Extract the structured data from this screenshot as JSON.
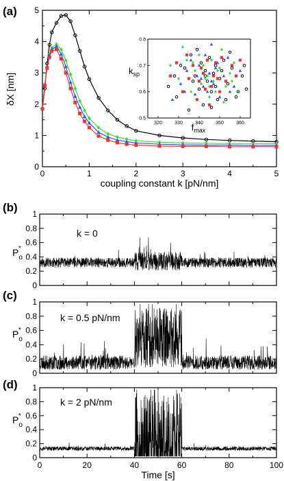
{
  "chart_data": [
    {
      "panel": "(a)",
      "type": "line",
      "xlabel": "coupling constant k [pN/nm]",
      "ylabel": "δX [nm]",
      "xlim": [
        0,
        5
      ],
      "ylim": [
        0,
        5
      ],
      "xticks": [
        "0",
        "1",
        "2",
        "3",
        "4",
        "5"
      ],
      "yticks": [
        "0",
        "1",
        "2",
        "3",
        "4",
        "5"
      ],
      "series": [
        {
          "color": "#000000",
          "marker": "circle",
          "x": [
            0,
            0.05,
            0.1,
            0.15,
            0.2,
            0.3,
            0.4,
            0.5,
            0.6,
            0.7,
            0.8,
            0.9,
            1.0,
            1.2,
            1.4,
            1.6,
            1.8,
            2.0,
            2.5,
            3.0,
            3.5,
            4.0,
            4.5,
            5.0
          ],
          "y": [
            1.85,
            2.5,
            3.3,
            3.9,
            4.3,
            4.6,
            4.82,
            4.85,
            4.65,
            4.2,
            3.7,
            3.2,
            2.8,
            2.2,
            1.8,
            1.5,
            1.3,
            1.15,
            1.0,
            0.92,
            0.87,
            0.84,
            0.82,
            0.8
          ]
        },
        {
          "color": "#33dd33",
          "marker": "diamond",
          "x": [
            0,
            0.05,
            0.1,
            0.15,
            0.2,
            0.3,
            0.4,
            0.5,
            0.6,
            0.7,
            0.8,
            0.9,
            1.0,
            1.2,
            1.4,
            1.6,
            1.8,
            2.0,
            2.5,
            3.0,
            3.5,
            4.0,
            4.5,
            5.0
          ],
          "y": [
            1.85,
            2.6,
            3.2,
            3.6,
            3.8,
            3.92,
            3.75,
            3.4,
            2.95,
            2.5,
            2.1,
            1.8,
            1.55,
            1.25,
            1.05,
            0.95,
            0.88,
            0.83,
            0.78,
            0.76,
            0.75,
            0.74,
            0.74,
            0.73
          ]
        },
        {
          "color": "#3355ee",
          "marker": "triangle",
          "x": [
            0,
            0.05,
            0.1,
            0.15,
            0.2,
            0.3,
            0.4,
            0.5,
            0.6,
            0.7,
            0.8,
            0.9,
            1.0,
            1.2,
            1.4,
            1.6,
            1.8,
            2.0,
            2.5,
            3.0,
            3.5,
            4.0,
            4.5,
            5.0
          ],
          "y": [
            1.85,
            2.6,
            3.2,
            3.55,
            3.75,
            3.85,
            3.6,
            3.2,
            2.7,
            2.25,
            1.9,
            1.6,
            1.4,
            1.1,
            0.95,
            0.85,
            0.8,
            0.76,
            0.72,
            0.7,
            0.69,
            0.69,
            0.68,
            0.68
          ]
        },
        {
          "color": "#ee3333",
          "marker": "square",
          "x": [
            0,
            0.05,
            0.1,
            0.15,
            0.2,
            0.3,
            0.4,
            0.5,
            0.6,
            0.7,
            0.8,
            0.9,
            1.0,
            1.2,
            1.4,
            1.6,
            1.8,
            2.0,
            2.5,
            3.0,
            3.5,
            4.0,
            4.5,
            5.0
          ],
          "y": [
            1.85,
            2.6,
            3.15,
            3.5,
            3.7,
            3.75,
            3.45,
            3.0,
            2.5,
            2.05,
            1.7,
            1.45,
            1.25,
            0.98,
            0.85,
            0.77,
            0.72,
            0.69,
            0.66,
            0.65,
            0.65,
            0.64,
            0.64,
            0.64
          ]
        }
      ],
      "inset": {
        "type": "scatter",
        "xlabel": "f",
        "xlabel_sub": "max",
        "ylabel": "k",
        "ylabel_sub": "sp",
        "xlim": [
          315,
          365
        ],
        "ylim": [
          0.5,
          0.8
        ],
        "xticks": [
          "320",
          "330",
          "340",
          "350",
          "360"
        ],
        "yticks": [
          "0.5",
          "0.6",
          "0.7",
          "0.8"
        ],
        "series": [
          {
            "color": "#000000",
            "marker": "circle",
            "x": [
              325,
              329,
              333,
              336,
              338,
              340,
              341,
              342,
              343,
              344,
              345,
              346,
              347,
              348,
              349,
              350,
              352,
              354,
              356,
              358,
              361,
              363,
              335,
              331,
              339,
              346,
              351,
              355,
              359,
              337,
              343,
              348,
              353,
              328,
              362
            ],
            "y": [
              0.62,
              0.58,
              0.69,
              0.74,
              0.66,
              0.61,
              0.71,
              0.55,
              0.68,
              0.64,
              0.73,
              0.6,
              0.67,
              0.7,
              0.57,
              0.65,
              0.72,
              0.63,
              0.69,
              0.58,
              0.66,
              0.61,
              0.53,
              0.7,
              0.76,
              0.54,
              0.68,
              0.75,
              0.6,
              0.64,
              0.66,
              0.62,
              0.57,
              0.66,
              0.7
            ]
          },
          {
            "color": "#33dd33",
            "marker": "diamond",
            "x": [
              326,
              330,
              334,
              336,
              338,
              340,
              341,
              342,
              344,
              345,
              346,
              347,
              348,
              350,
              351,
              353,
              355,
              357,
              359,
              332,
              343,
              349,
              352,
              337,
              345,
              356
            ],
            "y": [
              0.7,
              0.65,
              0.72,
              0.6,
              0.68,
              0.74,
              0.63,
              0.7,
              0.66,
              0.58,
              0.72,
              0.64,
              0.6,
              0.69,
              0.76,
              0.62,
              0.67,
              0.71,
              0.6,
              0.77,
              0.65,
              0.68,
              0.56,
              0.71,
              0.62,
              0.64
            ]
          },
          {
            "color": "#3355ee",
            "marker": "triangle",
            "x": [
              327,
              331,
              334,
              336,
              338,
              339,
              340,
              342,
              343,
              344,
              345,
              346,
              347,
              349,
              350,
              352,
              354,
              357,
              360,
              341,
              348,
              355,
              333,
              346
            ],
            "y": [
              0.57,
              0.63,
              0.68,
              0.72,
              0.59,
              0.66,
              0.7,
              0.62,
              0.74,
              0.6,
              0.67,
              0.78,
              0.63,
              0.71,
              0.58,
              0.66,
              0.73,
              0.62,
              0.68,
              0.65,
              0.69,
              0.6,
              0.6,
              0.64
            ]
          },
          {
            "color": "#ee3333",
            "marker": "square",
            "x": [
              326,
              329,
              332,
              335,
              337,
              339,
              340,
              341,
              343,
              344,
              345,
              347,
              348,
              350,
              351,
              353,
              356,
              358,
              360,
              342,
              346,
              349,
              334
            ],
            "y": [
              0.66,
              0.71,
              0.6,
              0.65,
              0.7,
              0.57,
              0.64,
              0.69,
              0.61,
              0.72,
              0.55,
              0.66,
              0.71,
              0.6,
              0.73,
              0.64,
              0.7,
              0.66,
              0.72,
              0.67,
              0.62,
              0.65,
              0.74
            ]
          }
        ]
      }
    },
    {
      "panel": "(b)",
      "type": "line",
      "annotation": "k = 0",
      "ylabel": "P",
      "ylabel_sub": "o",
      "ylabel_sup": "*",
      "xlim": [
        0,
        100
      ],
      "ylim": [
        0,
        1
      ],
      "yticks": [
        "0",
        "0.2",
        "0.4",
        "0.6",
        "0.8",
        "1"
      ],
      "segments": [
        {
          "x": [
            0,
            40
          ],
          "baseline": 0.32,
          "spread": 0.07
        },
        {
          "x": [
            40,
            60
          ],
          "baseline": 0.34,
          "spread": 0.13
        },
        {
          "x": [
            60,
            100
          ],
          "baseline": 0.32,
          "spread": 0.07
        }
      ]
    },
    {
      "panel": "(c)",
      "type": "line",
      "annotation": "k = 0.5 pN/nm",
      "ylabel": "P",
      "ylabel_sub": "o",
      "ylabel_sup": "*",
      "xlim": [
        0,
        100
      ],
      "ylim": [
        0,
        1
      ],
      "yticks": [
        "0",
        "0.2",
        "0.4",
        "0.6",
        "0.8",
        "1"
      ],
      "segments": [
        {
          "x": [
            0,
            40
          ],
          "baseline": 0.15,
          "spread": 0.1
        },
        {
          "x": [
            40,
            60
          ],
          "baseline": 0.5,
          "spread": 0.42
        },
        {
          "x": [
            60,
            100
          ],
          "baseline": 0.15,
          "spread": 0.1
        }
      ]
    },
    {
      "panel": "(d)",
      "type": "line",
      "annotation": "k = 2 pN/nm",
      "ylabel": "P",
      "ylabel_sub": "o",
      "ylabel_sup": "*",
      "xlabel": "Time [s]",
      "xlim": [
        0,
        100
      ],
      "ylim": [
        0,
        1
      ],
      "xticks": [
        "0",
        "20",
        "40",
        "60",
        "80",
        "100"
      ],
      "yticks": [
        "0",
        "0.2",
        "0.4",
        "0.6",
        "0.8",
        "1"
      ],
      "segments": [
        {
          "x": [
            0,
            40
          ],
          "baseline": 0.13,
          "spread": 0.03
        },
        {
          "x": [
            40,
            60
          ],
          "baseline": 0.2,
          "spread": 0.72
        },
        {
          "x": [
            60,
            100
          ],
          "baseline": 0.13,
          "spread": 0.03
        }
      ]
    }
  ]
}
